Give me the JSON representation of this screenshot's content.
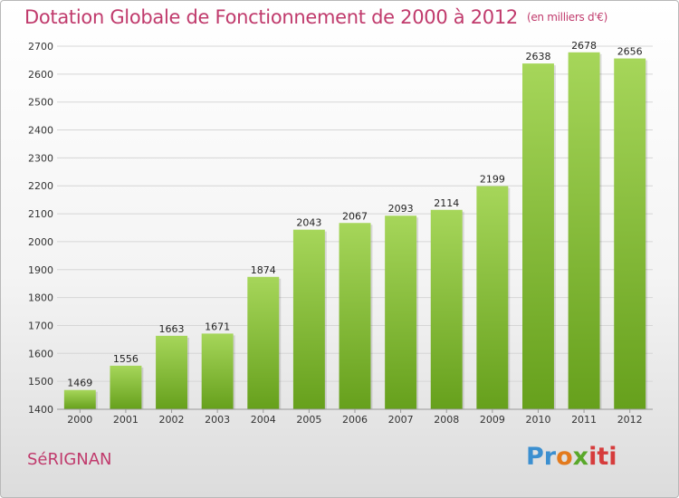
{
  "header": {
    "title": "Dotation Globale de Fonctionnement de 2000 à 2012",
    "unit": "(en milliers d'€)"
  },
  "footer": {
    "commune": "SéRIGNAN",
    "logo_parts": [
      "Pr",
      "o",
      "x",
      "iti"
    ]
  },
  "colors": {
    "title": "#c03a6c",
    "bar_light": "#a6d65a",
    "bar_dark": "#66a01c",
    "grid": "#d6d6d6"
  },
  "chart_data": {
    "type": "bar",
    "title": "Dotation Globale de Fonctionnement de 2000 à 2012",
    "categories": [
      "2000",
      "2001",
      "2002",
      "2003",
      "2004",
      "2005",
      "2006",
      "2007",
      "2008",
      "2009",
      "2010",
      "2011",
      "2012"
    ],
    "values": [
      1469,
      1556,
      1663,
      1671,
      1874,
      2043,
      2067,
      2093,
      2114,
      2199,
      2638,
      2678,
      2656
    ],
    "ylim": [
      1400,
      2700
    ],
    "yticks": [
      1400,
      1500,
      1600,
      1700,
      1800,
      1900,
      2000,
      2100,
      2200,
      2300,
      2400,
      2500,
      2600,
      2700
    ],
    "grid": true,
    "xlabel": "",
    "ylabel": ""
  }
}
